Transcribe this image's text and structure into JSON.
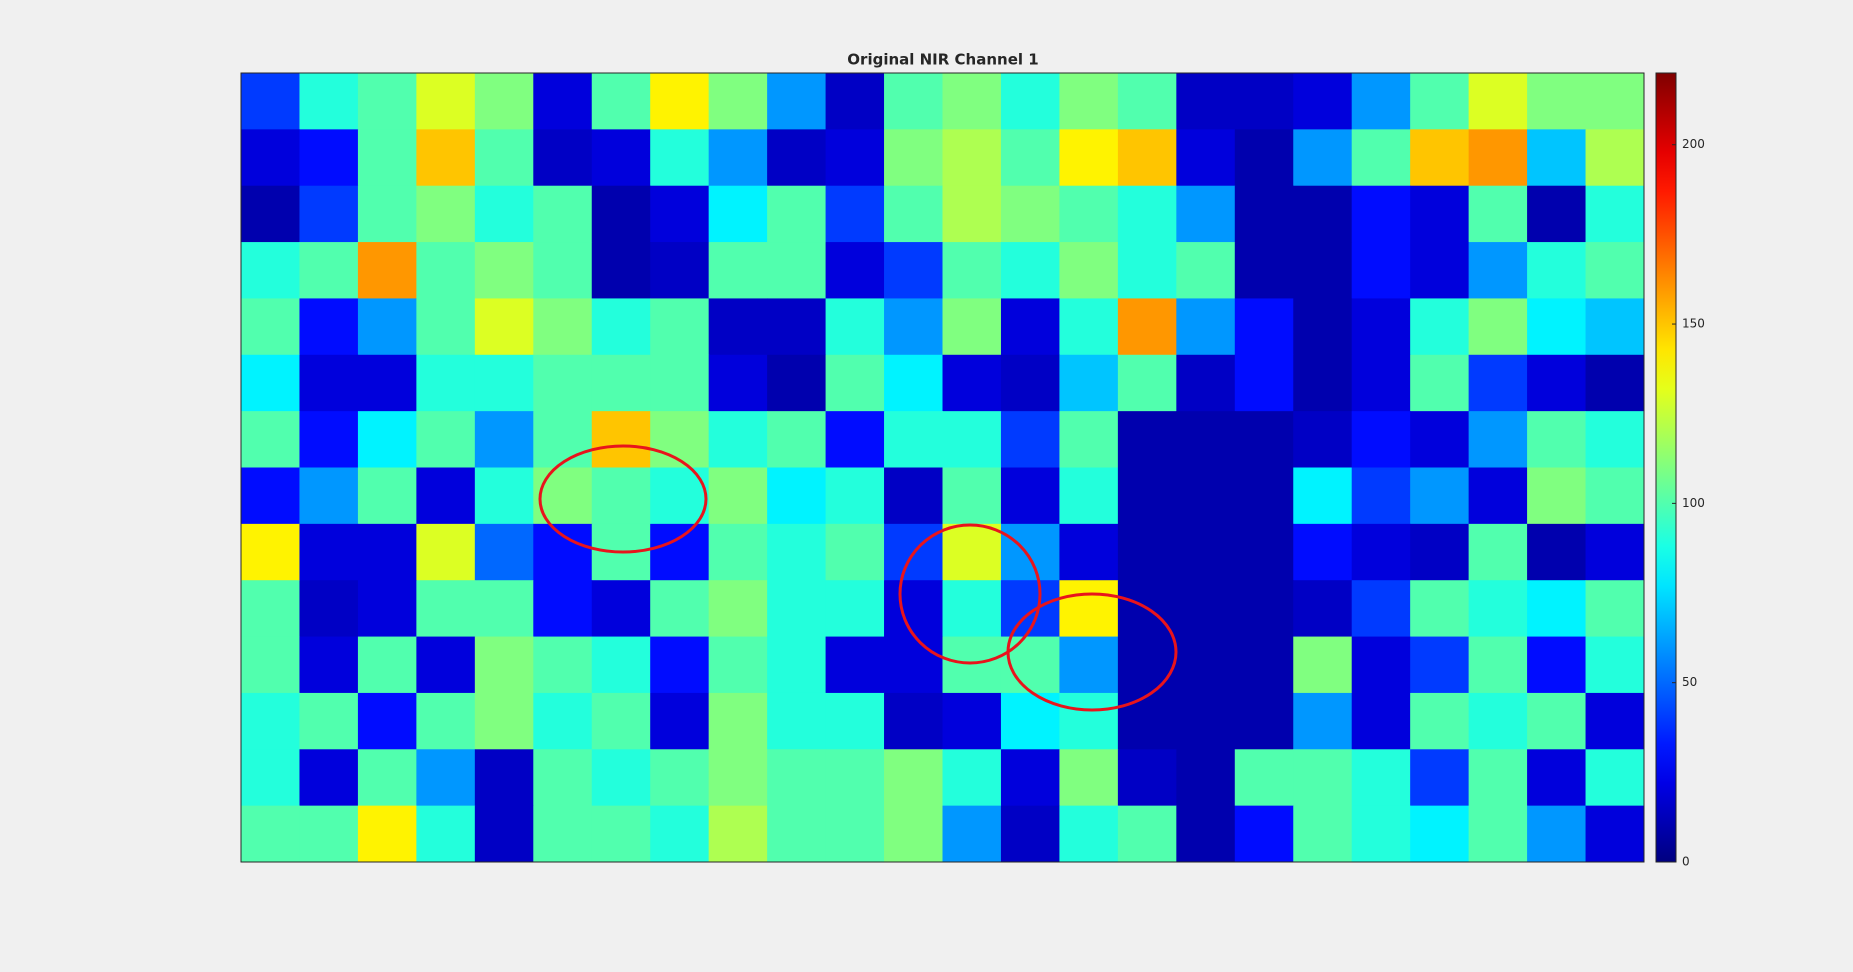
{
  "chart_data": {
    "type": "heatmap",
    "title": "Original NIR Channel 1",
    "colormap": "jet",
    "clim": [
      0,
      220
    ],
    "colorbar_ticks": [
      0,
      50,
      100,
      150,
      200
    ],
    "z": [
      [
        40,
        90,
        100,
        130,
        110,
        20,
        100,
        140,
        110,
        60,
        15,
        100,
        110,
        90,
        110,
        100,
        15,
        15,
        20,
        60,
        100,
        130,
        110,
        110
      ],
      [
        20,
        30,
        100,
        150,
        100,
        15,
        20,
        90,
        60,
        15,
        20,
        110,
        120,
        100,
        140,
        150,
        20,
        10,
        60,
        100,
        150,
        160,
        70,
        120
      ],
      [
        10,
        40,
        100,
        110,
        90,
        100,
        10,
        20,
        80,
        100,
        40,
        100,
        120,
        110,
        100,
        90,
        60,
        10,
        10,
        30,
        20,
        100,
        10,
        90
      ],
      [
        90,
        100,
        160,
        100,
        110,
        100,
        10,
        15,
        100,
        100,
        20,
        40,
        100,
        90,
        110,
        90,
        100,
        10,
        10,
        30,
        20,
        60,
        90,
        100
      ],
      [
        100,
        30,
        60,
        100,
        130,
        110,
        90,
        100,
        15,
        15,
        90,
        60,
        110,
        20,
        90,
        160,
        60,
        30,
        10,
        20,
        90,
        110,
        80,
        70
      ],
      [
        80,
        20,
        20,
        90,
        90,
        100,
        100,
        100,
        20,
        10,
        100,
        80,
        20,
        15,
        70,
        100,
        15,
        30,
        10,
        20,
        100,
        40,
        20,
        10
      ],
      [
        100,
        30,
        80,
        100,
        60,
        100,
        150,
        110,
        90,
        100,
        30,
        90,
        90,
        40,
        100,
        10,
        10,
        10,
        15,
        30,
        20,
        60,
        100,
        90
      ],
      [
        30,
        60,
        100,
        20,
        90,
        110,
        100,
        90,
        110,
        80,
        90,
        15,
        100,
        20,
        90,
        10,
        10,
        10,
        80,
        40,
        60,
        20,
        110,
        100
      ],
      [
        140,
        20,
        20,
        130,
        50,
        30,
        100,
        30,
        100,
        90,
        100,
        40,
        130,
        60,
        20,
        10,
        10,
        10,
        30,
        20,
        15,
        100,
        10,
        20
      ],
      [
        100,
        15,
        20,
        100,
        100,
        30,
        20,
        100,
        110,
        90,
        90,
        20,
        90,
        40,
        140,
        10,
        10,
        10,
        15,
        40,
        100,
        90,
        80,
        100
      ],
      [
        100,
        20,
        100,
        20,
        110,
        100,
        90,
        30,
        100,
        90,
        20,
        20,
        100,
        100,
        60,
        10,
        10,
        10,
        110,
        20,
        40,
        100,
        30,
        90
      ],
      [
        90,
        100,
        30,
        100,
        110,
        90,
        100,
        20,
        110,
        90,
        90,
        15,
        20,
        80,
        90,
        10,
        10,
        10,
        60,
        20,
        100,
        90,
        100,
        20
      ],
      [
        90,
        20,
        100,
        60,
        15,
        100,
        90,
        100,
        110,
        100,
        100,
        110,
        90,
        20,
        110,
        15,
        10,
        100,
        100,
        90,
        40,
        100,
        20,
        90
      ],
      [
        100,
        100,
        140,
        90,
        15,
        100,
        100,
        90,
        120,
        100,
        100,
        110,
        60,
        15,
        90,
        100,
        10,
        30,
        100,
        90,
        80,
        100,
        60,
        20
      ]
    ]
  }
}
